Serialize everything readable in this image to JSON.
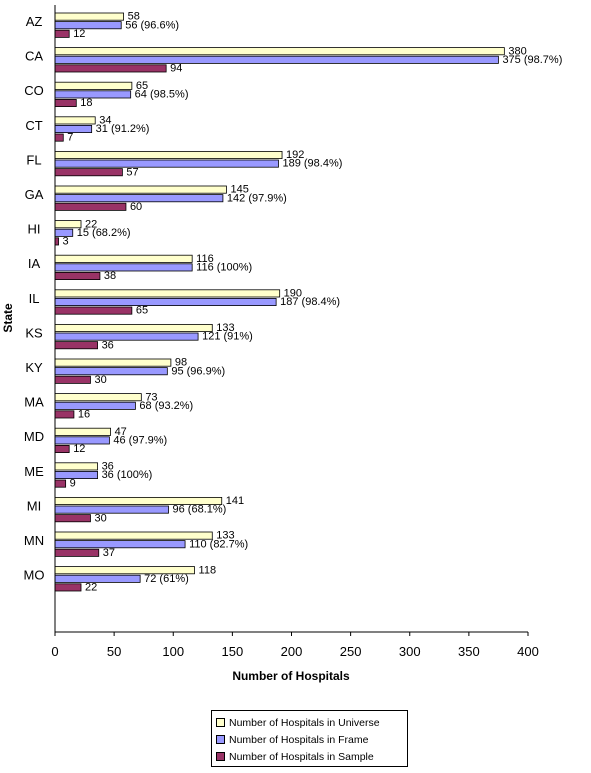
{
  "chart_data": {
    "type": "bar",
    "orientation": "horizontal",
    "title": "",
    "xlabel": "Number of Hospitals",
    "ylabel": "State",
    "xlim": [
      0,
      400
    ],
    "xticks": [
      "0",
      "50",
      "100",
      "150",
      "200",
      "250",
      "300",
      "350",
      "400"
    ],
    "grid": false,
    "legend_position": "bottom",
    "categories": [
      "AZ",
      "CA",
      "CO",
      "CT",
      "FL",
      "GA",
      "HI",
      "IA",
      "IL",
      "KS",
      "KY",
      "MA",
      "MD",
      "ME",
      "MI",
      "MN",
      "MO"
    ],
    "series": [
      {
        "name": "Number of Hospitals in Universe",
        "color": "#FFFFCC",
        "values": [
          58,
          380,
          65,
          34,
          192,
          145,
          22,
          116,
          190,
          133,
          98,
          73,
          47,
          36,
          141,
          133,
          118
        ],
        "labels": [
          "58",
          "380",
          "65",
          "34",
          "192",
          "145",
          "22",
          "116",
          "190",
          "133",
          "98",
          "73",
          "47",
          "36",
          "141",
          "133",
          "118"
        ]
      },
      {
        "name": "Number of Hospitals in Frame",
        "color": "#9999FF",
        "values": [
          56,
          375,
          64,
          31,
          189,
          142,
          15,
          116,
          187,
          121,
          95,
          68,
          46,
          36,
          96,
          110,
          72
        ],
        "labels": [
          "56 (96.6%)",
          "375 (98.7%)",
          "64 (98.5%)",
          "31 (91.2%)",
          "189 (98.4%)",
          "142 (97.9%)",
          "15 (68.2%)",
          "116 (100%)",
          "187 (98.4%)",
          "121 (91%)",
          "95 (96.9%)",
          "68 (93.2%)",
          "46 (97.9%)",
          "36 (100%)",
          "96 (68.1%)",
          "110 (82.7%)",
          "72 (61%)"
        ]
      },
      {
        "name": "Number of Hospitals in Sample",
        "color": "#993366",
        "values": [
          12,
          94,
          18,
          7,
          57,
          60,
          3,
          38,
          65,
          36,
          30,
          16,
          12,
          9,
          30,
          37,
          22
        ],
        "labels": [
          "12",
          "94",
          "18",
          "7",
          "57",
          "60",
          "3",
          "38",
          "65",
          "36",
          "30",
          "16",
          "12",
          "9",
          "30",
          "37",
          "22"
        ]
      }
    ]
  }
}
